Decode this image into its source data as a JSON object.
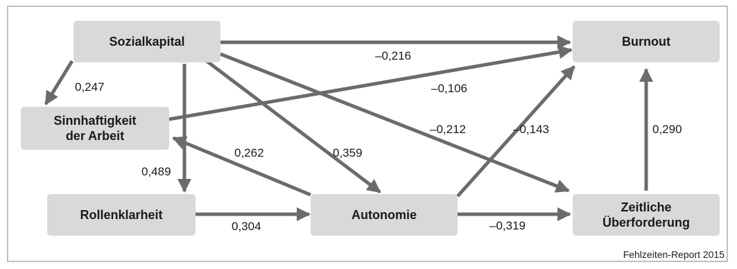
{
  "colors": {
    "node_fill": "#d9d9d9",
    "arrow": "#6b6b6b",
    "frame": "#bfbfbf",
    "text": "#1a1a1a"
  },
  "nodes": {
    "sozialkapital": "Sozialkapital",
    "burnout": "Burnout",
    "sinnhaftigkeit": "Sinnhaftigkeit\nder Arbeit",
    "rollenklarheit": "Rollenklarheit",
    "autonomie": "Autonomie",
    "zeitliche": "Zeitliche\nÜberforderung"
  },
  "edges": [
    {
      "from": "sozialkapital",
      "to": "burnout",
      "label": "–0,216"
    },
    {
      "from": "sozialkapital",
      "to": "sinnhaftigkeit",
      "label": "0,247"
    },
    {
      "from": "sinnhaftigkeit",
      "to": "burnout",
      "label": "–0,106"
    },
    {
      "from": "sozialkapital",
      "to": "zeitliche",
      "label": "–0,212"
    },
    {
      "from": "autonomie",
      "to": "burnout",
      "label": "–0,143"
    },
    {
      "from": "zeitliche",
      "to": "burnout",
      "label": "0,290"
    },
    {
      "from": "autonomie",
      "to": "sinnhaftigkeit",
      "label": "0,262"
    },
    {
      "from": "sozialkapital",
      "to": "autonomie",
      "label": "0,359"
    },
    {
      "from": "sozialkapital",
      "to": "rollenklarheit",
      "label": "0,489"
    },
    {
      "from": "rollenklarheit",
      "to": "autonomie",
      "label": "0,304"
    },
    {
      "from": "autonomie",
      "to": "zeitliche",
      "label": "–0,319"
    }
  ],
  "source": "Fehlzeiten-Report 2015"
}
